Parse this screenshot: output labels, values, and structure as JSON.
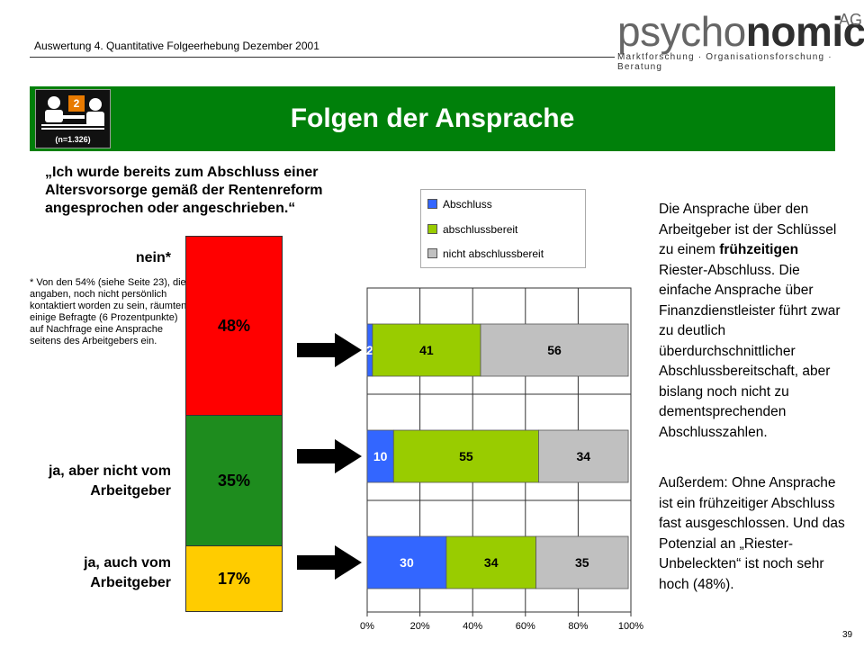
{
  "header": {
    "subtitle": "Auswertung 4. Quantitative Folgeerhebung Dezember 2001",
    "logo_psycho": "psycho",
    "logo_nomics": "nomics",
    "logo_ag": "AG",
    "logo_tagline": "Marktforschung · Organisationsforschung · Beratung"
  },
  "banner": {
    "title": "Folgen der Ansprache",
    "badge_number": "2",
    "badge_n": "(n=1.326)"
  },
  "question": "„Ich wurde bereits zum Abschluss einer Altersvorsorge gemäß der Rentenreform angesprochen oder angeschrieben.“",
  "stack": [
    {
      "label": "nein*",
      "value_label": "48%",
      "value": 48,
      "color": "#ff0000"
    },
    {
      "label": "ja, aber nicht vom Arbeitgeber",
      "value_label": "35%",
      "value": 35,
      "color": "#1e8c1e"
    },
    {
      "label": "ja, auch vom Arbeitgeber",
      "value_label": "17%",
      "value": 17,
      "color": "#ffcc00"
    }
  ],
  "footnote": "* Von den 54% (siehe Seite 23), die angaben, noch nicht persönlich kontaktiert worden zu sein, räumten einige Befragte (6 Prozentpunkte) auf Nachfrage eine Ansprache seitens des Arbeitgebers ein.",
  "paragraph1_parts": [
    "Die Ansprache über den Arbeitgeber ist der Schlüssel zu einem ",
    "frühzeitigen",
    " Riester-Abschluss. Die einfache Ansprache über Finanzdienstleister führt zwar zu deutlich überdurchschnittlicher Abschlussbereitschaft, aber bislang noch nicht zu dementsprechenden Abschlusszahlen."
  ],
  "paragraph2": "Außerdem: Ohne Ansprache ist ein frühzeitiger Abschluss fast ausgeschlossen. Und das Potenzial an „Riester-Unbeleckten“ ist noch sehr hoch (48%).",
  "page_number": "39",
  "chart_data": {
    "type": "bar",
    "orientation": "horizontal",
    "stacked": true,
    "categories": [
      "nein*",
      "ja, aber nicht vom Arbeitgeber",
      "ja, auch vom Arbeitgeber"
    ],
    "series": [
      {
        "name": "Abschluss",
        "color": "#3366ff",
        "values": [
          2,
          10,
          30
        ]
      },
      {
        "name": "abschlussbereit",
        "color": "#99cc00",
        "values": [
          41,
          55,
          34
        ]
      },
      {
        "name": "nicht abschlussbereit",
        "color": "#c0c0c0",
        "values": [
          56,
          34,
          35
        ]
      }
    ],
    "xlim": [
      0,
      100
    ],
    "xticks": [
      "0%",
      "20%",
      "40%",
      "60%",
      "80%",
      "100%"
    ],
    "grid": true,
    "legend": "top"
  }
}
